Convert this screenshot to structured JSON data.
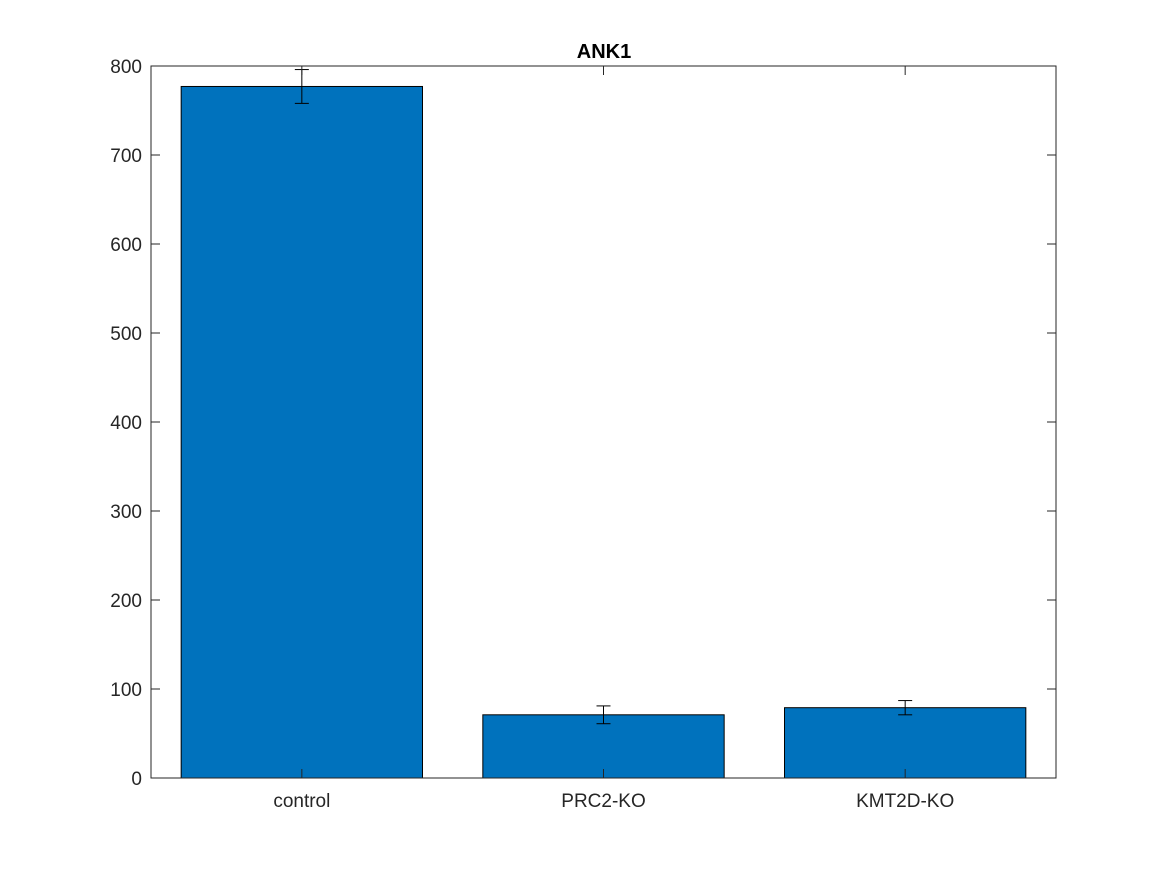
{
  "chart_data": {
    "type": "bar",
    "title": "ANK1",
    "xlabel": "",
    "ylabel": "",
    "categories": [
      "control",
      "PRC2-KO",
      "KMT2D-KO"
    ],
    "values": [
      777,
      71,
      79
    ],
    "errors": [
      19,
      10,
      8
    ],
    "ylim": [
      0,
      800
    ],
    "yticks": [
      0,
      100,
      200,
      300,
      400,
      500,
      600,
      700,
      800
    ],
    "ytick_labels": [
      "0",
      "100",
      "200",
      "300",
      "400",
      "500",
      "600",
      "700",
      "800"
    ],
    "grid": false,
    "legend": "none",
    "bar_color": "#0072BD",
    "edge_color": "#000000",
    "axis_color": "#262626"
  }
}
